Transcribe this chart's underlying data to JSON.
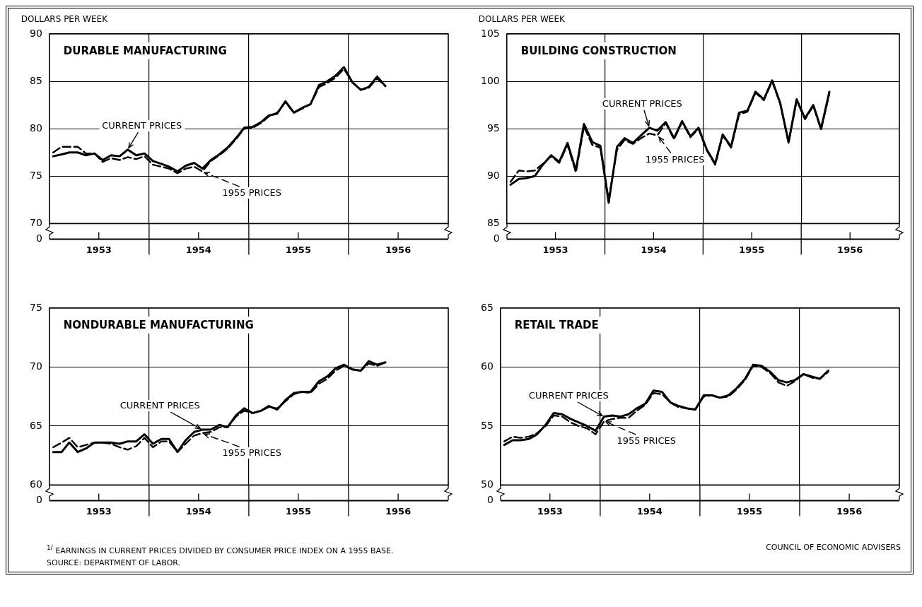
{
  "chart_data": [
    {
      "type": "line",
      "title": "DURABLE MANUFACTURING",
      "ylabel": "DOLLARS PER WEEK",
      "annotations": [
        "0"
      ],
      "x": [
        "1953-01-15",
        "1953-02-15",
        "1953-03-15",
        "1953-04-15",
        "1953-05-15",
        "1953-06-15",
        "1953-07-15",
        "1953-08-15",
        "1953-09-15",
        "1953-10-15",
        "1953-11-15",
        "1953-12-15",
        "1954-01-15",
        "1954-02-15",
        "1954-03-15",
        "1954-04-15",
        "1954-05-15",
        "1954-06-15",
        "1954-07-15",
        "1954-08-15",
        "1954-09-15",
        "1954-10-15",
        "1954-11-15",
        "1954-12-15",
        "1955-01-15",
        "1955-02-15",
        "1955-03-15",
        "1955-04-15",
        "1955-05-15",
        "1955-06-15",
        "1955-07-15",
        "1955-08-15",
        "1955-09-15",
        "1955-10-15",
        "1955-11-15",
        "1955-12-15",
        "1956-01-15",
        "1956-02-15",
        "1956-03-15",
        "1956-04-15",
        "1956-05-15"
      ],
      "series": [
        {
          "name": "CURRENT PRICES",
          "color": "#000000",
          "line_style": "solid",
          "values": [
            77.1,
            77.3,
            77.5,
            77.5,
            77.2,
            77.4,
            76.7,
            77.2,
            77.1,
            77.8,
            77.2,
            77.4,
            76.6,
            76.3,
            76.0,
            75.5,
            76.1,
            76.4,
            75.8,
            76.7,
            77.3,
            78.0,
            79.0,
            80.1,
            80.2,
            80.7,
            81.4,
            81.6,
            82.9,
            81.7,
            82.2,
            82.6,
            84.6,
            85.0,
            85.6,
            86.5,
            84.9,
            84.1,
            84.4,
            85.5,
            84.5
          ]
        },
        {
          "name": "1955 PRICES",
          "color": "#000000",
          "line_style": "dashed",
          "values": [
            77.5,
            78.1,
            78.1,
            78.1,
            77.4,
            77.4,
            76.5,
            76.9,
            76.7,
            77.0,
            76.8,
            77.1,
            76.2,
            76.0,
            75.8,
            75.3,
            75.8,
            76.0,
            75.5,
            76.6,
            77.2,
            77.9,
            78.9,
            80.0,
            80.1,
            80.6,
            81.3,
            81.7,
            82.8,
            81.7,
            82.1,
            82.6,
            84.4,
            84.8,
            85.4,
            86.3,
            84.9,
            84.1,
            84.3,
            85.3,
            84.5
          ]
        }
      ],
      "xlim": [
        "1953-01-01",
        "1957-01-01"
      ],
      "xticks": [
        {
          "value": "1953-07-01",
          "label": "1953"
        },
        {
          "value": "1954-01-01",
          "label": null
        },
        {
          "value": "1954-07-01",
          "label": "1954"
        },
        {
          "value": "1955-01-01",
          "label": null
        },
        {
          "value": "1955-07-01",
          "label": "1955"
        },
        {
          "value": "1956-01-01",
          "label": null
        },
        {
          "value": "1956-07-01",
          "label": "1956"
        }
      ],
      "ylim": [
        70,
        90
      ],
      "yticks": [
        70,
        75,
        80,
        85,
        90
      ],
      "grid": true
    },
    {
      "type": "line",
      "title": "BUILDING CONSTRUCTION",
      "ylabel": "DOLLARS PER WEEK",
      "annotations": [
        "0"
      ],
      "x": [
        "1953-01-15",
        "1953-02-15",
        "1953-03-15",
        "1953-04-15",
        "1953-05-15",
        "1953-06-15",
        "1953-07-15",
        "1953-08-15",
        "1953-09-15",
        "1953-10-15",
        "1953-11-15",
        "1953-12-15",
        "1954-01-15",
        "1954-02-15",
        "1954-03-15",
        "1954-04-15",
        "1954-05-15",
        "1954-06-15",
        "1954-07-15",
        "1954-08-15",
        "1954-09-15",
        "1954-10-15",
        "1954-11-15",
        "1954-12-15",
        "1955-01-15",
        "1955-02-15",
        "1955-03-15",
        "1955-04-15",
        "1955-05-15",
        "1955-06-15",
        "1955-07-15",
        "1955-08-15",
        "1955-09-15",
        "1955-10-15",
        "1955-11-15",
        "1955-12-15",
        "1956-01-15",
        "1956-02-15",
        "1956-03-15",
        "1956-04-15"
      ],
      "series": [
        {
          "name": "CURRENT PRICES",
          "color": "#000000",
          "line_style": "solid",
          "values": [
            89.1,
            89.7,
            89.8,
            90.0,
            91.2,
            92.2,
            91.5,
            93.5,
            90.6,
            95.5,
            93.6,
            93.2,
            87.2,
            93.1,
            94.0,
            93.5,
            94.3,
            95.1,
            94.8,
            95.7,
            94.0,
            95.8,
            94.2,
            95.1,
            92.8,
            91.3,
            94.4,
            93.1,
            96.7,
            96.9,
            98.9,
            98.1,
            100.1,
            97.7,
            93.6,
            98.1,
            96.1,
            97.5,
            95.0,
            98.9
          ]
        },
        {
          "name": "1955 PRICES",
          "color": "#000000",
          "line_style": "dashed",
          "values": [
            89.4,
            90.6,
            90.5,
            90.6,
            91.3,
            92.1,
            91.4,
            93.3,
            90.4,
            95.2,
            93.3,
            93.0,
            87.5,
            92.8,
            93.8,
            93.4,
            94.0,
            94.5,
            94.3,
            95.6,
            93.9,
            95.7,
            94.1,
            95.0,
            92.7,
            91.2,
            94.3,
            93.0,
            96.5,
            96.8,
            98.8,
            98.0,
            100.0,
            97.6,
            93.5,
            98.0,
            96.0,
            97.4,
            94.9,
            98.7
          ]
        }
      ],
      "xlim": [
        "1953-01-01",
        "1957-01-01"
      ],
      "xticks": [
        {
          "value": "1953-07-01",
          "label": "1953"
        },
        {
          "value": "1954-01-01",
          "label": null
        },
        {
          "value": "1954-07-01",
          "label": "1954"
        },
        {
          "value": "1955-01-01",
          "label": null
        },
        {
          "value": "1955-07-01",
          "label": "1955"
        },
        {
          "value": "1956-01-01",
          "label": null
        },
        {
          "value": "1956-07-01",
          "label": "1956"
        }
      ],
      "ylim": [
        85,
        105
      ],
      "yticks": [
        85,
        90,
        95,
        100,
        105
      ],
      "grid": true
    },
    {
      "type": "line",
      "title": "NONDURABLE MANUFACTURING",
      "annotations": [
        "0",
        "$^{1/}$ EARNINGS IN CURRENT PRICES DIVIDED BY CONSUMER PRICE INDEX ON A 1955 BASE.",
        "SOURCE: DEPARTMENT OF LABOR."
      ],
      "x": [
        "1953-01-15",
        "1953-02-15",
        "1953-03-15",
        "1953-04-15",
        "1953-05-15",
        "1953-06-15",
        "1953-07-15",
        "1953-08-15",
        "1953-09-15",
        "1953-10-15",
        "1953-11-15",
        "1953-12-15",
        "1954-01-15",
        "1954-02-15",
        "1954-03-15",
        "1954-04-15",
        "1954-05-15",
        "1954-06-15",
        "1954-07-15",
        "1954-08-15",
        "1954-09-15",
        "1954-10-15",
        "1954-11-15",
        "1954-12-15",
        "1955-01-15",
        "1955-02-15",
        "1955-03-15",
        "1955-04-15",
        "1955-05-15",
        "1955-06-15",
        "1955-07-15",
        "1955-08-15",
        "1955-09-15",
        "1955-10-15",
        "1955-11-15",
        "1955-12-15",
        "1956-01-15",
        "1956-02-15",
        "1956-03-15",
        "1956-04-15",
        "1956-05-15"
      ],
      "series": [
        {
          "name": "CURRENT PRICES",
          "color": "#000000",
          "line_style": "solid",
          "values": [
            62.8,
            62.8,
            63.6,
            62.8,
            63.1,
            63.6,
            63.6,
            63.6,
            63.5,
            63.7,
            63.7,
            64.3,
            63.5,
            63.9,
            63.9,
            62.8,
            63.8,
            64.5,
            64.7,
            64.7,
            65.1,
            64.9,
            65.9,
            66.5,
            66.1,
            66.3,
            66.7,
            66.4,
            67.2,
            67.8,
            67.9,
            67.9,
            68.8,
            69.2,
            69.9,
            70.2,
            69.8,
            69.7,
            70.5,
            70.2,
            70.4
          ]
        },
        {
          "name": "1955 PRICES",
          "color": "#000000",
          "line_style": "dashed",
          "values": [
            63.2,
            63.6,
            64.0,
            63.2,
            63.4,
            63.6,
            63.6,
            63.5,
            63.2,
            63.0,
            63.3,
            64.0,
            63.2,
            63.7,
            63.7,
            62.8,
            63.5,
            64.2,
            64.4,
            64.5,
            64.9,
            64.9,
            65.8,
            66.3,
            66.1,
            66.3,
            66.6,
            66.5,
            67.1,
            67.7,
            67.9,
            67.8,
            68.6,
            69.0,
            69.7,
            70.1,
            69.8,
            69.7,
            70.3,
            70.1,
            70.4
          ]
        }
      ],
      "xlim": [
        "1953-01-01",
        "1957-01-01"
      ],
      "xticks": [
        {
          "value": "1953-07-01",
          "label": "1953"
        },
        {
          "value": "1954-01-01",
          "label": null
        },
        {
          "value": "1954-07-01",
          "label": "1954"
        },
        {
          "value": "1955-01-01",
          "label": null
        },
        {
          "value": "1955-07-01",
          "label": "1955"
        },
        {
          "value": "1956-01-01",
          "label": null
        },
        {
          "value": "1956-07-01",
          "label": "1956"
        }
      ],
      "ylim": [
        60,
        75
      ],
      "yticks": [
        60,
        65,
        70,
        75
      ],
      "grid": true
    },
    {
      "type": "line",
      "title": "RETAIL TRADE",
      "annotations": [
        "0",
        "COUNCIL OF ECONOMIC ADVISERS"
      ],
      "x": [
        "1953-01-15",
        "1953-02-15",
        "1953-03-15",
        "1953-04-15",
        "1953-05-15",
        "1953-06-15",
        "1953-07-15",
        "1953-08-15",
        "1953-09-15",
        "1953-10-15",
        "1953-11-15",
        "1953-12-15",
        "1954-01-15",
        "1954-02-15",
        "1954-03-15",
        "1954-04-15",
        "1954-05-15",
        "1954-06-15",
        "1954-07-15",
        "1954-08-15",
        "1954-09-15",
        "1954-10-15",
        "1954-11-15",
        "1954-12-15",
        "1955-01-15",
        "1955-02-15",
        "1955-03-15",
        "1955-04-15",
        "1955-05-15",
        "1955-06-15",
        "1955-07-15",
        "1955-08-15",
        "1955-09-15",
        "1955-10-15",
        "1955-11-15",
        "1955-12-15",
        "1956-01-15",
        "1956-02-15",
        "1956-03-15",
        "1956-04-15"
      ],
      "series": [
        {
          "name": "CURRENT PRICES",
          "color": "#000000",
          "line_style": "solid",
          "values": [
            53.4,
            53.8,
            53.8,
            53.9,
            54.3,
            55.1,
            56.1,
            56.0,
            55.6,
            55.3,
            55.0,
            54.6,
            55.8,
            55.9,
            55.8,
            56.0,
            56.5,
            56.9,
            58.0,
            57.9,
            57.0,
            56.7,
            56.5,
            56.4,
            57.6,
            57.6,
            57.4,
            57.6,
            58.2,
            59.0,
            60.2,
            60.1,
            59.6,
            58.9,
            58.7,
            58.9,
            59.4,
            59.2,
            59.0,
            59.7
          ]
        },
        {
          "name": "1955 PRICES",
          "color": "#000000",
          "line_style": "dashed",
          "values": [
            53.7,
            54.1,
            54.0,
            54.1,
            54.4,
            55.0,
            55.9,
            55.8,
            55.3,
            55.0,
            54.8,
            54.3,
            55.4,
            55.6,
            55.7,
            55.7,
            56.3,
            56.8,
            57.8,
            57.7,
            57.0,
            56.6,
            56.5,
            56.4,
            57.5,
            57.6,
            57.4,
            57.5,
            58.1,
            58.9,
            60.1,
            60.0,
            59.5,
            58.7,
            58.4,
            58.8,
            59.4,
            59.1,
            59.0,
            59.6
          ]
        }
      ],
      "xlim": [
        "1953-01-01",
        "1957-01-01"
      ],
      "xticks": [
        {
          "value": "1953-07-01",
          "label": "1953"
        },
        {
          "value": "1954-01-01",
          "label": null
        },
        {
          "value": "1954-07-01",
          "label": "1954"
        },
        {
          "value": "1955-01-01",
          "label": null
        },
        {
          "value": "1955-07-01",
          "label": "1955"
        },
        {
          "value": "1956-01-01",
          "label": null
        },
        {
          "value": "1956-07-01",
          "label": "1956"
        }
      ],
      "ylim": [
        50,
        65
      ],
      "yticks": [
        50,
        55,
        60,
        65
      ],
      "grid": true
    }
  ]
}
